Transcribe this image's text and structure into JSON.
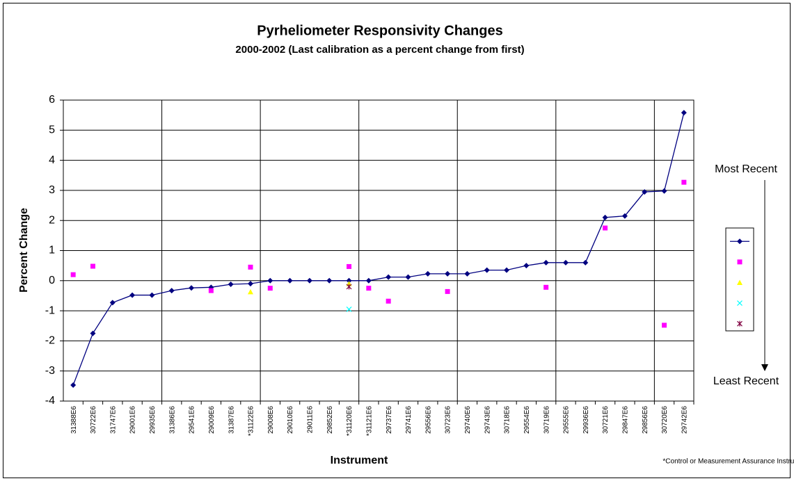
{
  "chart_data": {
    "type": "line",
    "title": "Pyrheliometer Responsivity Changes",
    "subtitle": "2000-2002 (Last calibration as a percent change from first)",
    "x_label": "Instrument",
    "y_label": "Percent Change",
    "footnote": "*Control or Measurement Assurance Instrument",
    "annotations": [
      "Most Recent",
      "Least Recent"
    ],
    "categories": [
      "31388E6",
      "30722E6",
      "31747E6",
      "29001E6",
      "29935E6",
      "31386E6",
      "29541E6",
      "29009E6",
      "31387E6",
      "*31122E6",
      "29008E6",
      "29010E6",
      "29011E6",
      "29852E6",
      "*31120E6",
      "*31121E6",
      "29737E6",
      "29741E6",
      "29556E6",
      "30723E6",
      "29740E6",
      "29743E6",
      "30718E6",
      "29554E6",
      "30719E6",
      "29555E6",
      "29936E6",
      "30721E6",
      "29847E6",
      "29856E6",
      "30720E6",
      "29742E6"
    ],
    "series": [
      {
        "color": "#000080",
        "marker": "diamond",
        "line": true,
        "values": [
          -3.47,
          -1.75,
          -0.73,
          -0.48,
          -0.48,
          -0.33,
          -0.24,
          -0.22,
          -0.12,
          -0.1,
          0,
          0,
          0,
          0,
          0,
          0,
          0.12,
          0.12,
          0.23,
          0.23,
          0.23,
          0.35,
          0.35,
          0.5,
          0.6,
          0.6,
          0.6,
          2.1,
          2.15,
          2.95,
          2.98,
          5.58
        ]
      },
      {
        "color": "#ff00ff",
        "marker": "square",
        "line": false,
        "values": [
          0.2,
          0.48,
          null,
          null,
          null,
          null,
          null,
          -0.33,
          null,
          0.45,
          -0.25,
          null,
          null,
          null,
          0.47,
          -0.25,
          -0.68,
          null,
          null,
          -0.36,
          null,
          null,
          null,
          null,
          -0.22,
          null,
          null,
          1.75,
          null,
          null,
          -1.48,
          3.27
        ]
      },
      {
        "color": "#ffff00",
        "marker": "triangle",
        "line": false,
        "values": [
          null,
          null,
          null,
          null,
          null,
          null,
          null,
          null,
          null,
          -0.37,
          null,
          null,
          null,
          null,
          -0.1,
          null,
          null,
          null,
          null,
          null,
          null,
          null,
          null,
          null,
          null,
          null,
          null,
          null,
          null,
          null,
          null,
          null
        ]
      },
      {
        "color": "#00ffff",
        "marker": "x",
        "line": false,
        "values": [
          null,
          null,
          null,
          null,
          null,
          null,
          null,
          null,
          null,
          null,
          null,
          null,
          null,
          null,
          -0.95,
          null,
          null,
          null,
          null,
          null,
          null,
          null,
          null,
          null,
          null,
          null,
          null,
          null,
          null,
          null,
          null,
          null
        ]
      },
      {
        "color": "#800040",
        "marker": "star",
        "line": false,
        "values": [
          null,
          null,
          null,
          null,
          null,
          null,
          null,
          null,
          null,
          null,
          null,
          null,
          null,
          null,
          -0.2,
          null,
          null,
          null,
          null,
          null,
          null,
          null,
          null,
          null,
          null,
          null,
          null,
          null,
          null,
          null,
          null,
          null
        ]
      }
    ],
    "ylim": [
      -4,
      6
    ],
    "yticks": [
      -4,
      -3,
      -2,
      -1,
      0,
      1,
      2,
      3,
      4,
      5,
      6
    ],
    "grid": true,
    "x_grid_interval": 5,
    "legend": "right"
  }
}
